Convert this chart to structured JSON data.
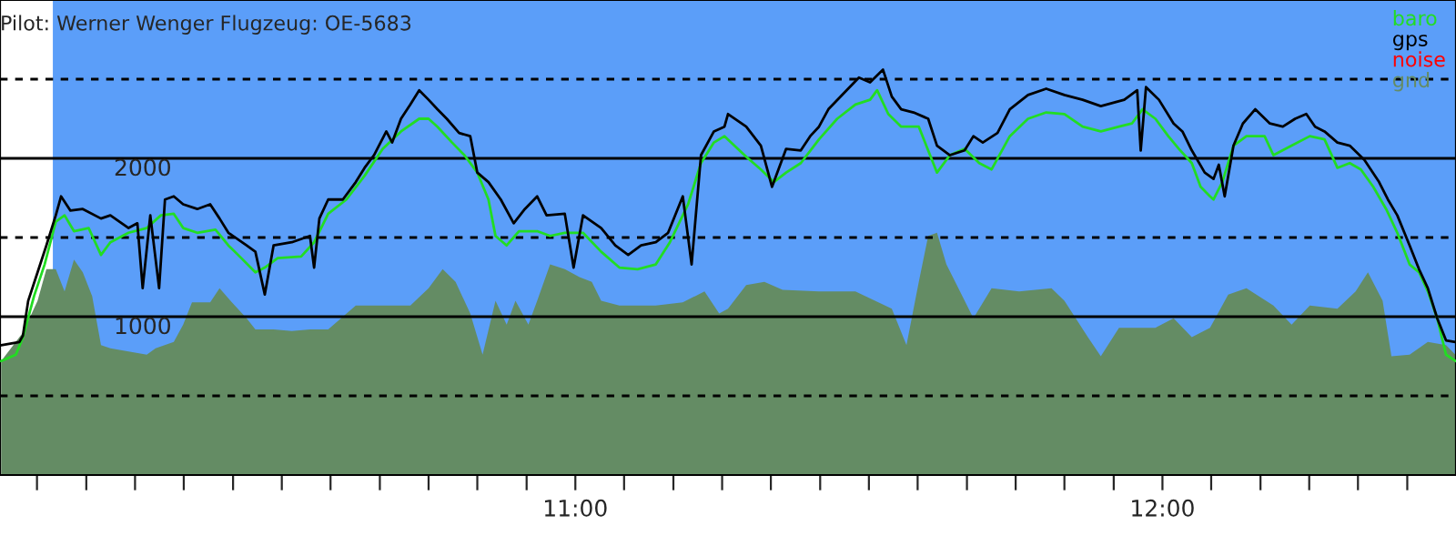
{
  "chart_data": {
    "type": "line",
    "title": "Pilot: Werner Wenger Flugzeug: OE-5683",
    "xlim": [
      10.02,
      12.5
    ],
    "ylim": [
      0,
      3000
    ],
    "xticks": [
      {
        "value": 10.083,
        "label": null
      },
      {
        "value": 10.167,
        "label": null
      },
      {
        "value": 10.25,
        "label": null
      },
      {
        "value": 10.333,
        "label": null
      },
      {
        "value": 10.417,
        "label": null
      },
      {
        "value": 10.5,
        "label": null
      },
      {
        "value": 10.583,
        "label": null
      },
      {
        "value": 10.667,
        "label": null
      },
      {
        "value": 10.75,
        "label": null
      },
      {
        "value": 10.833,
        "label": null
      },
      {
        "value": 10.917,
        "label": null
      },
      {
        "value": 11,
        "label": "11:00"
      },
      {
        "value": 11.083,
        "label": null
      },
      {
        "value": 11.167,
        "label": null
      },
      {
        "value": 11.25,
        "label": null
      },
      {
        "value": 11.333,
        "label": null
      },
      {
        "value": 11.417,
        "label": null
      },
      {
        "value": 11.5,
        "label": null
      },
      {
        "value": 11.583,
        "label": null
      },
      {
        "value": 11.667,
        "label": null
      },
      {
        "value": 11.75,
        "label": null
      },
      {
        "value": 11.833,
        "label": null
      },
      {
        "value": 11.917,
        "label": null
      },
      {
        "value": 12,
        "label": "12:00"
      },
      {
        "value": 12.083,
        "label": null
      },
      {
        "value": 12.167,
        "label": null
      },
      {
        "value": 12.25,
        "label": null
      },
      {
        "value": 12.333,
        "label": null
      },
      {
        "value": 12.417,
        "label": null
      }
    ],
    "yticks": [
      {
        "value": 500,
        "label": null
      },
      1000,
      {
        "value": 1500,
        "label": null
      },
      2000,
      {
        "value": 2500,
        "label": null
      }
    ],
    "grid": "y",
    "legend": "top right",
    "marker": "none",
    "line_style": "solid",
    "bands": [
      {
        "axis": "x",
        "from": 10.11,
        "to": 12.499,
        "color": "#5b9ef9"
      }
    ],
    "series": [
      {
        "name": "gnd",
        "type": "area",
        "color": "#648c64",
        "x": [
          10.022,
          10.059,
          10.084,
          10.099,
          10.115,
          10.13,
          10.146,
          10.161,
          10.177,
          10.192,
          10.208,
          10.239,
          10.27,
          10.285,
          10.316,
          10.332,
          10.347,
          10.378,
          10.394,
          10.415,
          10.44,
          10.455,
          10.486,
          10.517,
          10.548,
          10.579,
          10.626,
          10.672,
          10.719,
          10.75,
          10.774,
          10.796,
          10.821,
          10.842,
          10.864,
          10.883,
          10.898,
          10.92,
          10.935,
          10.957,
          10.982,
          11.007,
          11.028,
          11.044,
          11.075,
          11.137,
          11.183,
          11.22,
          11.245,
          11.26,
          11.291,
          11.322,
          11.353,
          11.415,
          11.477,
          11.539,
          11.564,
          11.585,
          11.601,
          11.616,
          11.632,
          11.647,
          11.678,
          11.709,
          11.756,
          11.811,
          11.833,
          11.873,
          11.895,
          11.926,
          11.988,
          12.019,
          12.05,
          12.081,
          12.112,
          12.143,
          12.189,
          12.22,
          12.251,
          12.298,
          12.329,
          12.35,
          12.375,
          12.39,
          12.421,
          12.452,
          12.483,
          12.499
        ],
        "values": [
          720,
          900,
          1100,
          1300,
          1300,
          1160,
          1360,
          1280,
          1130,
          820,
          800,
          780,
          760,
          800,
          840,
          950,
          1090,
          1090,
          1180,
          1090,
          990,
          920,
          920,
          910,
          920,
          920,
          1070,
          1070,
          1070,
          1180,
          1300,
          1220,
          1020,
          760,
          1100,
          950,
          1100,
          950,
          1100,
          1330,
          1300,
          1250,
          1220,
          1100,
          1070,
          1070,
          1090,
          1160,
          1020,
          1050,
          1200,
          1220,
          1170,
          1160,
          1160,
          1050,
          820,
          1220,
          1510,
          1530,
          1330,
          1220,
          990,
          1180,
          1160,
          1180,
          1100,
          870,
          750,
          930,
          930,
          990,
          870,
          930,
          1140,
          1180,
          1070,
          950,
          1070,
          1050,
          1160,
          1280,
          1100,
          750,
          760,
          840,
          820,
          760
        ]
      },
      {
        "name": "baro",
        "color": "#22dd22",
        "x": [
          10.022,
          10.047,
          10.059,
          10.078,
          10.096,
          10.115,
          10.13,
          10.146,
          10.171,
          10.192,
          10.208,
          10.239,
          10.27,
          10.294,
          10.316,
          10.332,
          10.356,
          10.387,
          10.409,
          10.431,
          10.455,
          10.471,
          10.493,
          10.533,
          10.555,
          10.579,
          10.61,
          10.641,
          10.672,
          10.703,
          10.734,
          10.75,
          10.765,
          10.79,
          10.811,
          10.833,
          10.852,
          10.864,
          10.883,
          10.904,
          10.935,
          10.957,
          10.982,
          11.013,
          11.044,
          11.075,
          11.106,
          11.137,
          11.161,
          11.192,
          11.214,
          11.236,
          11.254,
          11.291,
          11.316,
          11.338,
          11.359,
          11.384,
          11.415,
          11.446,
          11.477,
          11.502,
          11.514,
          11.533,
          11.555,
          11.585,
          11.616,
          11.638,
          11.663,
          11.688,
          11.709,
          11.74,
          11.771,
          11.802,
          11.833,
          11.864,
          11.895,
          11.926,
          11.948,
          11.966,
          11.988,
          12.01,
          12.028,
          12.05,
          12.065,
          12.081,
          12.087,
          12.102,
          12.121,
          12.143,
          12.174,
          12.189,
          12.22,
          12.251,
          12.276,
          12.298,
          12.319,
          12.338,
          12.359,
          12.381,
          12.4,
          12.421,
          12.437,
          12.452,
          12.468,
          12.483,
          12.499
        ],
        "values": [
          720,
          760,
          870,
          1130,
          1330,
          1600,
          1640,
          1540,
          1560,
          1390,
          1470,
          1530,
          1560,
          1640,
          1650,
          1560,
          1530,
          1550,
          1450,
          1370,
          1280,
          1310,
          1370,
          1380,
          1470,
          1650,
          1740,
          1890,
          2060,
          2170,
          2250,
          2250,
          2200,
          2100,
          2020,
          1910,
          1740,
          1510,
          1450,
          1540,
          1540,
          1510,
          1530,
          1530,
          1410,
          1310,
          1300,
          1330,
          1470,
          1710,
          1970,
          2100,
          2140,
          2010,
          1930,
          1850,
          1910,
          1970,
          2120,
          2250,
          2340,
          2370,
          2430,
          2280,
          2200,
          2200,
          1910,
          2020,
          2060,
          1970,
          1930,
          2140,
          2250,
          2290,
          2280,
          2200,
          2170,
          2200,
          2220,
          2310,
          2250,
          2140,
          2060,
          1970,
          1820,
          1760,
          1740,
          1850,
          2080,
          2140,
          2140,
          2020,
          2080,
          2140,
          2120,
          1940,
          1970,
          1930,
          1820,
          1680,
          1530,
          1330,
          1280,
          1160,
          990,
          760,
          720
        ]
      },
      {
        "name": "gps",
        "color": "#000000",
        "x": [
          10.022,
          10.053,
          10.059,
          10.068,
          10.084,
          10.099,
          10.115,
          10.124,
          10.14,
          10.161,
          10.192,
          10.208,
          10.239,
          10.254,
          10.263,
          10.276,
          10.291,
          10.301,
          10.316,
          10.332,
          10.356,
          10.378,
          10.394,
          10.409,
          10.44,
          10.455,
          10.471,
          10.486,
          10.517,
          10.548,
          10.555,
          10.564,
          10.579,
          10.604,
          10.626,
          10.641,
          10.657,
          10.678,
          10.688,
          10.703,
          10.719,
          10.734,
          10.75,
          10.765,
          10.781,
          10.802,
          10.821,
          10.833,
          10.852,
          10.873,
          10.895,
          10.914,
          10.935,
          10.951,
          10.982,
          10.997,
          11.013,
          11.044,
          11.068,
          11.09,
          11.112,
          11.137,
          11.158,
          11.183,
          11.198,
          11.214,
          11.236,
          11.254,
          11.26,
          11.291,
          11.316,
          11.335,
          11.359,
          11.384,
          11.4,
          11.415,
          11.431,
          11.462,
          11.483,
          11.502,
          11.524,
          11.539,
          11.555,
          11.576,
          11.601,
          11.616,
          11.638,
          11.663,
          11.678,
          11.694,
          11.719,
          11.74,
          11.771,
          11.802,
          11.833,
          11.864,
          11.895,
          11.935,
          11.957,
          11.963,
          11.972,
          11.994,
          12.019,
          12.034,
          12.05,
          12.072,
          12.087,
          12.096,
          12.106,
          12.121,
          12.137,
          12.158,
          12.183,
          12.205,
          12.226,
          12.245,
          12.26,
          12.276,
          12.298,
          12.319,
          12.344,
          12.369,
          12.384,
          12.4,
          12.421,
          12.437,
          12.452,
          12.468,
          12.483,
          12.499
        ],
        "values": [
          820,
          840,
          880,
          1100,
          1280,
          1450,
          1640,
          1760,
          1670,
          1680,
          1620,
          1640,
          1560,
          1590,
          1180,
          1640,
          1180,
          1740,
          1760,
          1710,
          1680,
          1710,
          1620,
          1530,
          1450,
          1410,
          1140,
          1450,
          1470,
          1510,
          1310,
          1620,
          1740,
          1740,
          1850,
          1940,
          2020,
          2170,
          2100,
          2250,
          2340,
          2430,
          2370,
          2310,
          2250,
          2160,
          2140,
          1910,
          1850,
          1740,
          1590,
          1680,
          1760,
          1640,
          1650,
          1310,
          1640,
          1560,
          1450,
          1390,
          1450,
          1470,
          1530,
          1760,
          1330,
          2020,
          2170,
          2200,
          2280,
          2200,
          2080,
          1820,
          2060,
          2050,
          2140,
          2200,
          2310,
          2430,
          2510,
          2480,
          2560,
          2390,
          2310,
          2290,
          2250,
          2080,
          2020,
          2050,
          2140,
          2100,
          2160,
          2310,
          2400,
          2440,
          2400,
          2370,
          2330,
          2370,
          2430,
          2050,
          2450,
          2370,
          2220,
          2170,
          2050,
          1910,
          1870,
          1960,
          1760,
          2080,
          2220,
          2310,
          2220,
          2200,
          2250,
          2280,
          2200,
          2170,
          2100,
          2080,
          1990,
          1850,
          1740,
          1640,
          1450,
          1300,
          1180,
          990,
          850,
          840
        ]
      },
      {
        "name": "noise",
        "color": "#ff0000"
      }
    ]
  }
}
